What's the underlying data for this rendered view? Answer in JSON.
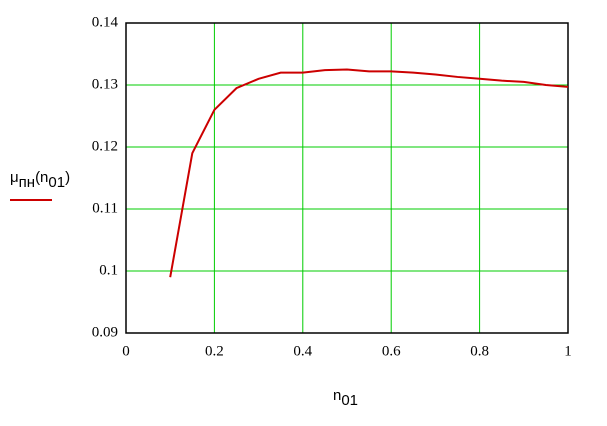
{
  "chart_data": {
    "type": "line",
    "x_label": [
      {
        "text": "n"
      },
      {
        "text": "01",
        "sub": true
      }
    ],
    "y_label": [
      {
        "text": "μ"
      },
      {
        "text": "пн",
        "sub": true
      },
      {
        "text": "(n"
      },
      {
        "text": "01",
        "sub": true
      },
      {
        "text": ")"
      }
    ],
    "x": [
      0.1,
      0.15,
      0.2,
      0.25,
      0.3,
      0.35,
      0.4,
      0.45,
      0.5,
      0.55,
      0.6,
      0.65,
      0.7,
      0.75,
      0.8,
      0.85,
      0.9,
      0.95,
      1.0
    ],
    "series": [
      {
        "color": "#cc0000",
        "values": [
          0.099,
          0.119,
          0.126,
          0.1295,
          0.131,
          0.132,
          0.132,
          0.1324,
          0.1325,
          0.1322,
          0.1322,
          0.132,
          0.1317,
          0.1313,
          0.131,
          0.1307,
          0.1305,
          0.13,
          0.1297
        ]
      }
    ],
    "xlim": [
      0,
      1
    ],
    "xticks": [
      0,
      0.2,
      0.4,
      0.6,
      0.8,
      1
    ],
    "ylim": [
      0.09,
      0.14
    ],
    "yticks": [
      0.09,
      0.1,
      0.11,
      0.12,
      0.13,
      0.14
    ],
    "grid": true,
    "grid_color": "#00cc00"
  }
}
